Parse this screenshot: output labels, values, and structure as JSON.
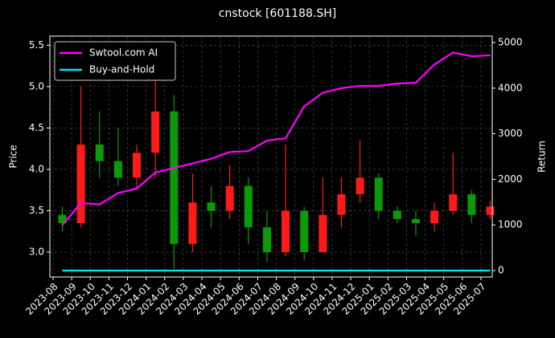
{
  "chart_data": {
    "type": "candlestick",
    "title": "cnstock [601188.SH]",
    "y_label": "Price",
    "y2_label": "Return",
    "categories": [
      "2023-08",
      "2023-09",
      "2023-10",
      "2023-11",
      "2023-12",
      "2024-01",
      "2024-02",
      "2024-03",
      "2024-04",
      "2024-05",
      "2024-06",
      "2024-07",
      "2024-08",
      "2024-09",
      "2024-10",
      "2024-11",
      "2024-12",
      "2025-01",
      "2025-02",
      "2025-03",
      "2025-04",
      "2025-05",
      "2025-06",
      "2025-07"
    ],
    "open": [
      3.45,
      3.35,
      4.3,
      4.1,
      3.9,
      4.2,
      4.7,
      3.1,
      3.6,
      3.5,
      3.8,
      3.3,
      3.0,
      3.5,
      3.0,
      3.45,
      3.7,
      3.9,
      3.5,
      3.4,
      3.35,
      3.5,
      3.7,
      3.45
    ],
    "high": [
      3.55,
      5.0,
      4.7,
      4.5,
      4.3,
      5.1,
      4.9,
      3.95,
      3.8,
      4.05,
      3.9,
      3.5,
      4.3,
      3.55,
      3.9,
      3.9,
      4.35,
      3.95,
      3.55,
      3.5,
      3.6,
      4.2,
      3.75,
      3.62
    ],
    "low": [
      3.25,
      3.3,
      3.9,
      3.8,
      3.75,
      3.9,
      2.8,
      3.0,
      3.3,
      3.4,
      3.1,
      2.88,
      2.95,
      2.9,
      3.0,
      3.3,
      3.6,
      3.4,
      3.35,
      3.2,
      3.25,
      3.45,
      3.35,
      3.4
    ],
    "close": [
      3.35,
      4.3,
      4.1,
      3.9,
      4.2,
      4.7,
      3.1,
      3.6,
      3.5,
      3.8,
      3.3,
      3.0,
      3.5,
      3.0,
      3.45,
      3.7,
      3.9,
      3.5,
      3.4,
      3.35,
      3.5,
      3.7,
      3.45,
      3.55
    ],
    "up_color": "#ff1a1a",
    "down_color": "#0a9a0a",
    "series": [
      {
        "name": "Swtool.com AI",
        "color": "#ff00ff",
        "axis": "y2",
        "values": [
          1000,
          1480,
          1450,
          1700,
          1800,
          2150,
          2250,
          2350,
          2450,
          2600,
          2620,
          2850,
          2900,
          3600,
          3900,
          4000,
          4050,
          4050,
          4100,
          4120,
          4520,
          4780,
          4700,
          4720
        ]
      },
      {
        "name": "Buy-and-Hold",
        "color": "#00e5ee",
        "axis": "y2",
        "values": [
          0,
          0,
          0,
          0,
          0,
          0,
          0,
          0,
          0,
          0,
          0,
          0,
          0,
          0,
          0,
          0,
          0,
          0,
          0,
          0,
          0,
          0,
          0,
          0
        ]
      }
    ],
    "ylim": [
      2.7,
      5.61
    ],
    "yticks": [
      {
        "value": 3,
        "label": "3.0"
      },
      3.5,
      {
        "value": 4,
        "label": "4.0"
      },
      4.5,
      {
        "value": 5,
        "label": "5.0"
      },
      5.5
    ],
    "y2lim": [
      -141,
      5141
    ],
    "y2ticks": [
      0,
      1000,
      2000,
      3000,
      4000,
      5000
    ],
    "grid": true,
    "legend": "upper left"
  }
}
